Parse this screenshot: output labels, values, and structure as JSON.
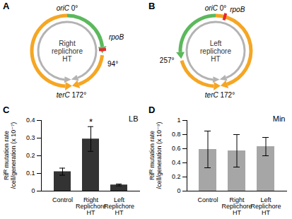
{
  "chart_data": [
    {
      "type": "bar",
      "panel": "C",
      "title": "LB",
      "y_label": "Rifᴿ mutation rate\n/cell/generation (x 10⁻⁷)",
      "categories": [
        "Control",
        "Right Replichore HT",
        "Left Replichore HT"
      ],
      "values": [
        0.11,
        0.295,
        0.035
      ],
      "errors": [
        0.02,
        0.07,
        0.005
      ],
      "color": "#333333",
      "ylim": [
        0,
        0.4
      ],
      "yticks": [
        0,
        0.1,
        0.2,
        0.3,
        0.4
      ],
      "annotations": [
        {
          "category": "Right Replichore HT",
          "text": "*"
        }
      ]
    },
    {
      "type": "bar",
      "panel": "D",
      "title": "Min",
      "y_label": "Rifᴿ mutation rate\n/cell/generation (x 10⁻⁹)",
      "categories": [
        "Control",
        "Right Replichore HT",
        "Left Replichore HT"
      ],
      "values": [
        0.59,
        0.57,
        0.63
      ],
      "errors": [
        0.26,
        0.23,
        0.13
      ],
      "color": "#a6a6a6",
      "ylim": [
        0,
        1
      ],
      "yticks": [
        0,
        0.2,
        0.4,
        0.6,
        0.8,
        1
      ]
    }
  ],
  "diagrams": [
    {
      "panel": "A",
      "origin": {
        "name": "oriC",
        "angle": {
          "value": 0,
          "label": "0°"
        }
      },
      "terminus": {
        "name": "terC",
        "angle": {
          "value": 172,
          "label": "172°"
        }
      },
      "inversion_end": {
        "value": 94,
        "label": "94°"
      },
      "gene": {
        "name": "rpoB",
        "angle": 88
      },
      "center_label": "Right replichore HT"
    },
    {
      "panel": "B",
      "origin": {
        "name": "oriC",
        "angle": {
          "value": 0,
          "label": "0°"
        }
      },
      "terminus": {
        "name": "terC",
        "angle": {
          "value": 172,
          "label": "172°"
        }
      },
      "inversion_end": {
        "value": 257,
        "label": "257°"
      },
      "gene": {
        "name": "rpoB",
        "angle": 15
      },
      "center_label": "Left replichore HT"
    }
  ]
}
